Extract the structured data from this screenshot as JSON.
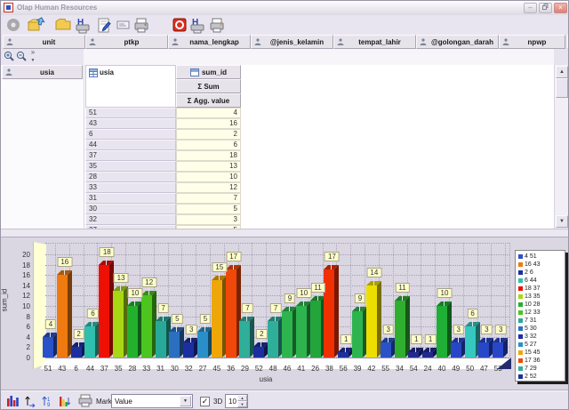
{
  "window": {
    "title": "Olap Human Resources",
    "minimize_label": "–",
    "close_label": "×"
  },
  "toolbar": {
    "icons": [
      "gear-icon",
      "open-folder-icon",
      "folder-icon",
      "save-h-icon",
      "edit-icon",
      "card-icon",
      "printer-icon",
      "exit-icon",
      "save-h-icon",
      "printer-icon"
    ]
  },
  "zoom_toolbar": {
    "overflow": "»",
    "icons": [
      "zoom-in-icon",
      "zoom-out-icon"
    ]
  },
  "field_headers": [
    "unit",
    "ptkp",
    "nama_lengkap",
    "@jenis_kelamin",
    "tempat_lahir",
    "@golongan_darah",
    "npwp"
  ],
  "header_overflow": "·",
  "pivot": {
    "row_field": "usia",
    "column_header": "usia",
    "measure_header": "sum_id",
    "sum_header": "Σ  Sum",
    "agg_header": "Σ  Agg. value",
    "rows": [
      {
        "usia": "51",
        "value": "4"
      },
      {
        "usia": "43",
        "value": "16"
      },
      {
        "usia": "6",
        "value": "2"
      },
      {
        "usia": "44",
        "value": "6"
      },
      {
        "usia": "37",
        "value": "18"
      },
      {
        "usia": "35",
        "value": "13"
      },
      {
        "usia": "28",
        "value": "10"
      },
      {
        "usia": "33",
        "value": "12"
      },
      {
        "usia": "31",
        "value": "7"
      },
      {
        "usia": "30",
        "value": "5"
      },
      {
        "usia": "32",
        "value": "3"
      },
      {
        "usia": "27",
        "value": "5"
      }
    ]
  },
  "chart_data": {
    "type": "bar",
    "title": "",
    "xlabel": "usia",
    "ylabel": "sum_id",
    "ylim": [
      0,
      20
    ],
    "ytick_step": 2,
    "grid": true,
    "legend_position": "right",
    "categories": [
      "51",
      "43",
      "6",
      "44",
      "37",
      "35",
      "28",
      "33",
      "31",
      "30",
      "32",
      "27",
      "45",
      "36",
      "29",
      "52",
      "48",
      "46",
      "41",
      "26",
      "38",
      "56",
      "39",
      "42",
      "55",
      "34",
      "54",
      "24",
      "40",
      "49",
      "50",
      "47",
      "53"
    ],
    "values": [
      4,
      16,
      2,
      6,
      18,
      13,
      10,
      12,
      7,
      5,
      3,
      5,
      15,
      17,
      7,
      2,
      7,
      9,
      10,
      11,
      17,
      1,
      9,
      14,
      3,
      11,
      1,
      1,
      10,
      3,
      6,
      3,
      3
    ],
    "colors": [
      "#2a52c8",
      "#ee7a10",
      "#1c2fa0",
      "#2fbfae",
      "#ee1005",
      "#a8d714",
      "#23b12d",
      "#4cc51e",
      "#28a898",
      "#2a6fc0",
      "#1c2fa0",
      "#2a8fc8",
      "#eea608",
      "#f04808",
      "#2fae9a",
      "#1c2fa0",
      "#2fae9a",
      "#2eb44e",
      "#2eb44e",
      "#23a53c",
      "#f03000",
      "#1c2fa0",
      "#2eb44e",
      "#eede00",
      "#2a52c8",
      "#2fae30",
      "#202a90",
      "#202a90",
      "#1fae36",
      "#2746c8",
      "#35c8c0",
      "#2746c8",
      "#2746c8"
    ],
    "legend": [
      {
        "label": "4 51",
        "color": "#2a52c8"
      },
      {
        "label": "16 43",
        "color": "#ee7a10"
      },
      {
        "label": "2 6",
        "color": "#1c2fa0"
      },
      {
        "label": "6 44",
        "color": "#2fbfae"
      },
      {
        "label": "18 37",
        "color": "#ee1005"
      },
      {
        "label": "13 35",
        "color": "#a8d714"
      },
      {
        "label": "10 28",
        "color": "#23b12d"
      },
      {
        "label": "12 33",
        "color": "#4cc51e"
      },
      {
        "label": "7 31",
        "color": "#28a898"
      },
      {
        "label": "5 30",
        "color": "#2a6fc0"
      },
      {
        "label": "3 32",
        "color": "#1c2fa0"
      },
      {
        "label": "5 27",
        "color": "#2a8fc8"
      },
      {
        "label": "15 45",
        "color": "#eea608"
      },
      {
        "label": "17 36",
        "color": "#f04808"
      },
      {
        "label": "7 29",
        "color": "#2fae9a"
      },
      {
        "label": "2 52",
        "color": "#1c2fa0"
      }
    ]
  },
  "chart_toolbar": {
    "mark_label": "Mark :",
    "mark_value": "Value",
    "threed_label": "3D",
    "threed_checked": "✓",
    "spinner_value": "10"
  }
}
